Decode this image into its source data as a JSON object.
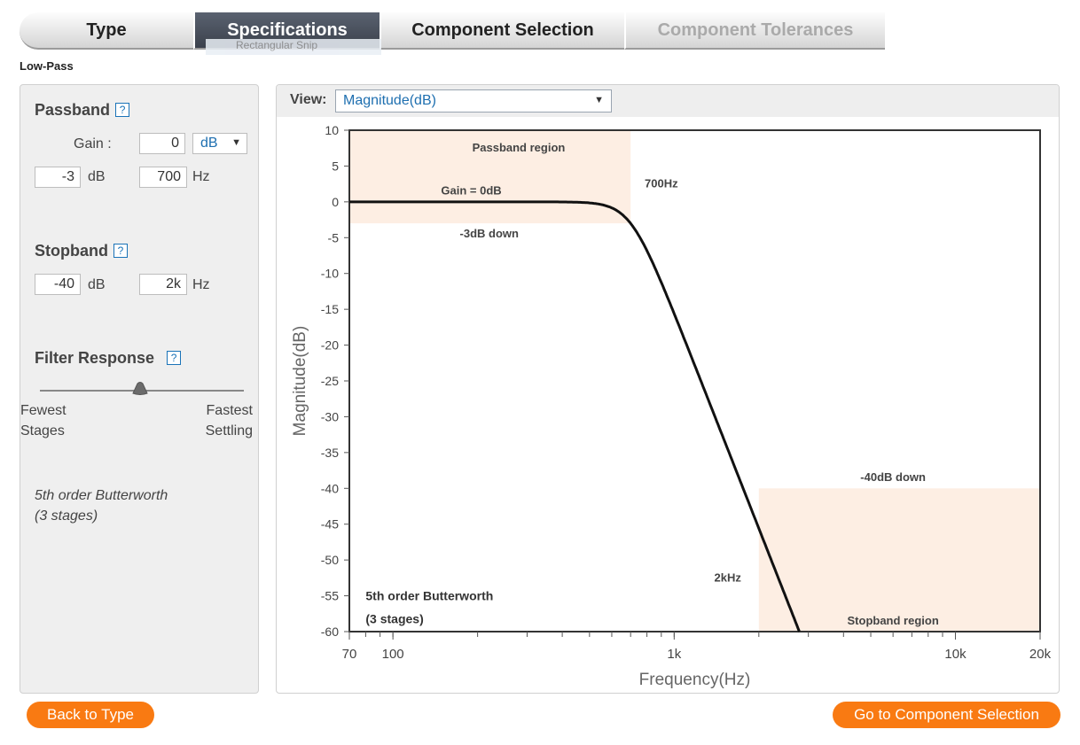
{
  "tabs": [
    {
      "label": "Type",
      "state": "normal"
    },
    {
      "label": "Specifications",
      "state": "active"
    },
    {
      "label": "Component Selection",
      "state": "normal"
    },
    {
      "label": "Component Tolerances",
      "state": "disabled"
    }
  ],
  "ghost_text": "Rectangular Snip",
  "filter_type": "Low-Pass",
  "passband": {
    "title": "Passband",
    "help": "?",
    "gain_label": "Gain :",
    "gain_value": "0",
    "gain_unit": "dB",
    "attenuation_value": "-3",
    "attenuation_unit": "dB",
    "freq_value": "700",
    "freq_unit": "Hz"
  },
  "stopband": {
    "title": "Stopband",
    "help": "?",
    "attenuation_value": "-40",
    "attenuation_unit": "dB",
    "freq_value": "2k",
    "freq_unit": "Hz"
  },
  "filter_response": {
    "title": "Filter Response",
    "help": "?",
    "left_label_1": "Fewest",
    "left_label_2": "Stages",
    "right_label_1": "Fastest",
    "right_label_2": "Settling",
    "slider_value_fraction": 0.49
  },
  "result": {
    "line1": "5th order Butterworth",
    "line2": "(3 stages)"
  },
  "view": {
    "label": "View:",
    "selected": "Magnitude(dB)"
  },
  "buttons": {
    "back": "Back to Type",
    "next": "Go to Component Selection"
  },
  "colors": {
    "accent": "#f97a12",
    "region_fill": "#fdeee3",
    "tab_active": "#474d58",
    "link": "#1e6fb0"
  },
  "chart_data": {
    "type": "line",
    "xlabel": "Frequency(Hz)",
    "ylabel": "Magnitude(dB)",
    "xscale": "log",
    "xlim": [
      70,
      20000
    ],
    "ylim": [
      -60,
      10
    ],
    "x_ticks": [
      {
        "value": 70,
        "label": "70"
      },
      {
        "value": 100,
        "label": "100"
      },
      {
        "value": 1000,
        "label": "1k"
      },
      {
        "value": 10000,
        "label": "10k"
      },
      {
        "value": 20000,
        "label": "20k"
      }
    ],
    "y_ticks": [
      10,
      5,
      0,
      -5,
      -10,
      -15,
      -20,
      -25,
      -30,
      -35,
      -40,
      -45,
      -50,
      -55,
      -60
    ],
    "series": [
      {
        "order": 5,
        "cutoff_hz": 700,
        "gain_db": 0
      }
    ],
    "regions": [
      {
        "label": "Passband region",
        "x_from": 70,
        "x_to": 700,
        "y_from": -3,
        "y_to": 10
      },
      {
        "label": "Stopband region",
        "x_from": 2000,
        "x_to": 20000,
        "y_from": -60,
        "y_to": -40
      }
    ],
    "annotations": [
      {
        "text": "Passband region",
        "x": 280,
        "y": 7.5
      },
      {
        "text": "Gain = 0dB",
        "x": 190,
        "y": 1.5
      },
      {
        "text": "-3dB down",
        "x": 220,
        "y": -4.5
      },
      {
        "text": "700Hz",
        "x": 900,
        "y": 2.5
      },
      {
        "text": "-40dB down",
        "x": 6000,
        "y": -38.5
      },
      {
        "text": "2kHz",
        "x": 1550,
        "y": -52.5
      },
      {
        "text": "Stopband region",
        "x": 6000,
        "y": -58.5
      }
    ],
    "inner_label_1": "5th order Butterworth",
    "inner_label_2": "(3 stages)",
    "grid": false
  }
}
